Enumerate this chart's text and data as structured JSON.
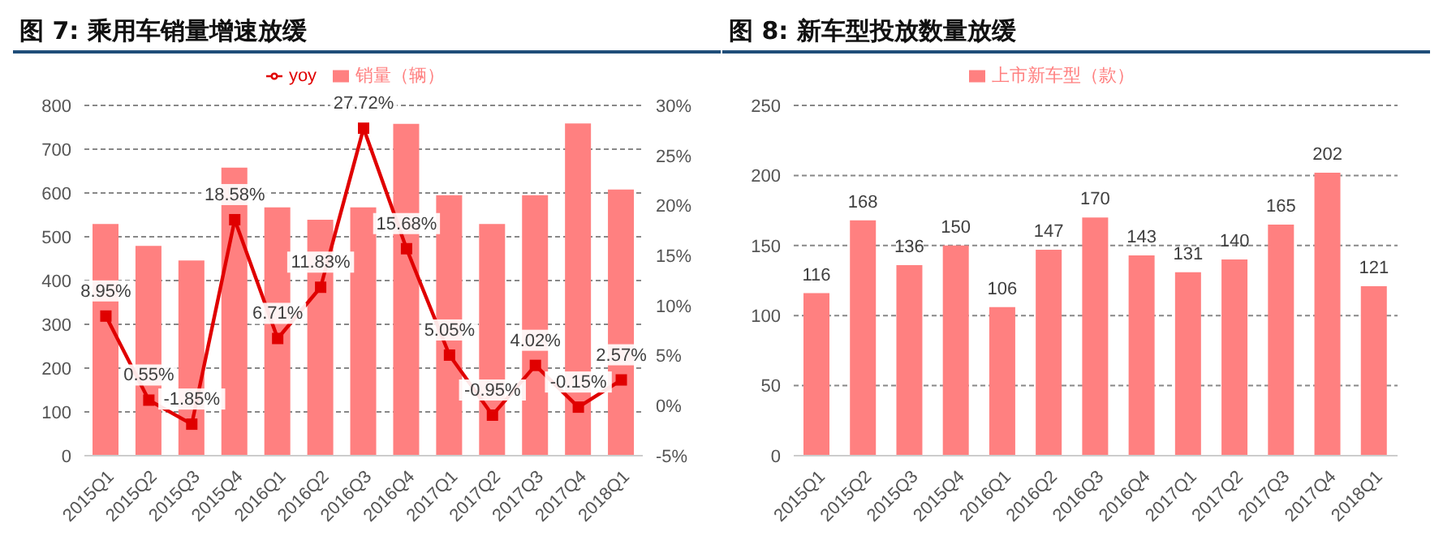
{
  "chart_data": [
    {
      "type": "bar",
      "title": "图 7: 乘用车销量增速放缓",
      "categories": [
        "2015Q1",
        "2015Q2",
        "2015Q3",
        "2015Q4",
        "2016Q1",
        "2016Q2",
        "2016Q3",
        "2016Q4",
        "2017Q1",
        "2017Q2",
        "2017Q3",
        "2017Q4",
        "2018Q1"
      ],
      "series": [
        {
          "name": "销量（辆）",
          "color": "#ff8080",
          "values": [
            529,
            479,
            446,
            658,
            567,
            539,
            567,
            758,
            595,
            529,
            595,
            759,
            608
          ]
        },
        {
          "name": "yoy",
          "type": "line",
          "axis": "y2",
          "color": "#e00000",
          "values": [
            8.95,
            0.55,
            -1.85,
            18.58,
            6.71,
            11.83,
            27.72,
            15.68,
            5.05,
            -0.95,
            4.02,
            -0.15,
            2.57
          ],
          "value_labels": [
            "8.95%",
            "0.55%",
            "-1.85%",
            "18.58%",
            "6.71%",
            "11.83%",
            "27.72%",
            "15.68%",
            "5.05%",
            "-0.95%",
            "4.02%",
            "-0.15%",
            "2.57%"
          ]
        }
      ],
      "ylim": [
        0,
        800
      ],
      "yticks": [
        0,
        100,
        200,
        300,
        400,
        500,
        600,
        700,
        800
      ],
      "y2lim": [
        -5,
        30
      ],
      "y2ticks": [
        {
          "value": -5,
          "label": "-5%"
        },
        {
          "value": 0,
          "label": "0%"
        },
        {
          "value": 5,
          "label": "5%"
        },
        {
          "value": 10,
          "label": "10%"
        },
        {
          "value": 15,
          "label": "15%"
        },
        {
          "value": 20,
          "label": "20%"
        },
        {
          "value": 25,
          "label": "25%"
        },
        {
          "value": 30,
          "label": "30%"
        }
      ],
      "grid": "y",
      "legend": "top",
      "marker": "square"
    },
    {
      "type": "bar",
      "title": "图 8: 新车型投放数量放缓",
      "categories": [
        "2015Q1",
        "2015Q2",
        "2015Q3",
        "2015Q4",
        "2016Q1",
        "2016Q2",
        "2016Q3",
        "2016Q4",
        "2017Q1",
        "2017Q2",
        "2017Q3",
        "2017Q4",
        "2018Q1"
      ],
      "series": [
        {
          "name": "上市新车型（款）",
          "color": "#ff8080",
          "values": [
            116,
            168,
            136,
            150,
            106,
            147,
            170,
            143,
            131,
            140,
            165,
            202,
            121
          ]
        }
      ],
      "ylim": [
        0,
        250
      ],
      "yticks": [
        0,
        50,
        100,
        150,
        200,
        250
      ],
      "grid": "y",
      "legend": "top",
      "data_labels": true
    }
  ]
}
